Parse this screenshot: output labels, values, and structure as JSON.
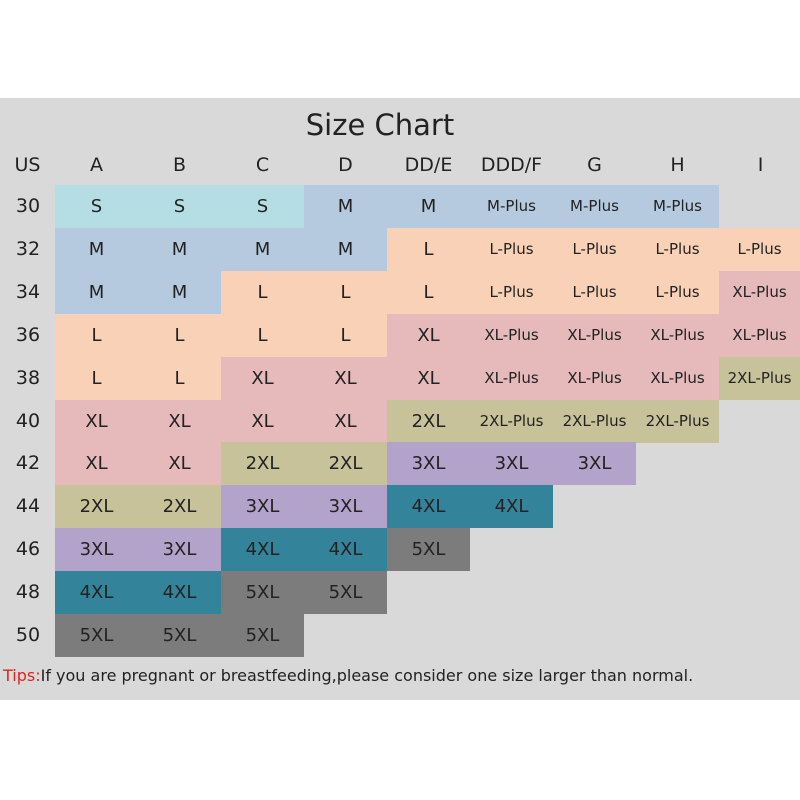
{
  "chart_data": {
    "type": "table",
    "title": "Size Chart",
    "corner_label": "US",
    "columns": [
      "A",
      "B",
      "C",
      "D",
      "DD/E",
      "DDD/F",
      "G",
      "H",
      "I"
    ],
    "rows": [
      {
        "band": "30",
        "sizes": [
          "S",
          "S",
          "S",
          "M",
          "M",
          "M-Plus",
          "M-Plus",
          "M-Plus",
          ""
        ]
      },
      {
        "band": "32",
        "sizes": [
          "M",
          "M",
          "M",
          "M",
          "L",
          "L-Plus",
          "L-Plus",
          "L-Plus",
          "L-Plus"
        ]
      },
      {
        "band": "34",
        "sizes": [
          "M",
          "M",
          "L",
          "L",
          "L",
          "L-Plus",
          "L-Plus",
          "L-Plus",
          "XL-Plus"
        ]
      },
      {
        "band": "36",
        "sizes": [
          "L",
          "L",
          "L",
          "L",
          "XL",
          "XL-Plus",
          "XL-Plus",
          "XL-Plus",
          "XL-Plus"
        ]
      },
      {
        "band": "38",
        "sizes": [
          "L",
          "L",
          "XL",
          "XL",
          "XL",
          "XL-Plus",
          "XL-Plus",
          "XL-Plus",
          "2XL-Plus"
        ]
      },
      {
        "band": "40",
        "sizes": [
          "XL",
          "XL",
          "XL",
          "XL",
          "2XL",
          "2XL-Plus",
          "2XL-Plus",
          "2XL-Plus",
          ""
        ]
      },
      {
        "band": "42",
        "sizes": [
          "XL",
          "XL",
          "2XL",
          "2XL",
          "3XL",
          "3XL",
          "3XL",
          "",
          ""
        ]
      },
      {
        "band": "44",
        "sizes": [
          "2XL",
          "2XL",
          "3XL",
          "3XL",
          "4XL",
          "4XL",
          "",
          "",
          ""
        ]
      },
      {
        "band": "46",
        "sizes": [
          "3XL",
          "3XL",
          "4XL",
          "4XL",
          "5XL",
          "",
          "",
          "",
          ""
        ]
      },
      {
        "band": "48",
        "sizes": [
          "4XL",
          "4XL",
          "5XL",
          "5XL",
          "",
          "",
          "",
          "",
          ""
        ]
      },
      {
        "band": "50",
        "sizes": [
          "5XL",
          "5XL",
          "5XL",
          "",
          "",
          "",
          "",
          "",
          ""
        ]
      }
    ],
    "size_colors": {
      "S": "#b5dde4",
      "M": "#b5c9df",
      "L": "#f9d1b7",
      "XL": "#e6babb",
      "2XL": "#c8c29b",
      "3XL": "#b3a2c9",
      "4XL": "#33839a",
      "5XL": "#7c7c7c"
    }
  },
  "tips": {
    "label": "Tips:",
    "text": "If you are pregnant or breastfeeding,please consider one size larger than normal."
  }
}
